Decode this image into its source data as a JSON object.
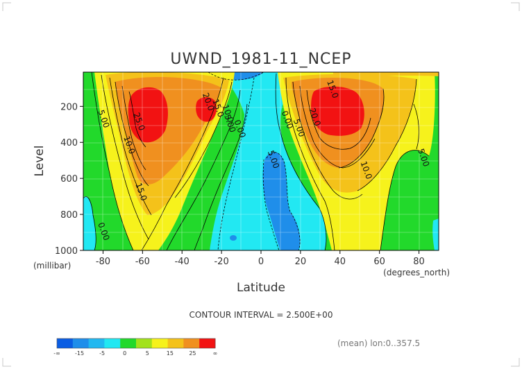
{
  "chart_data": {
    "type": "heatmap",
    "title": "UWND_1981-11_NCEP",
    "xlabel": "Latitude",
    "ylabel": "Level",
    "x_units": "(degrees_north)",
    "y_units": "(millibar)",
    "xlim": [
      -90,
      90
    ],
    "ylim": [
      1000,
      10
    ],
    "y_inverted": true,
    "x_ticks": [
      -80,
      -60,
      -40,
      -20,
      0,
      20,
      40,
      60,
      80
    ],
    "y_ticks": [
      200,
      400,
      600,
      800,
      1000
    ],
    "grid": true,
    "contour_interval_text": "CONTOUR INTERVAL = 2.500E+00",
    "contour_labels": [
      {
        "text": "15.0",
        "lat": 35,
        "level": 110
      },
      {
        "text": "20.0",
        "lat": -28,
        "level": 180
      },
      {
        "text": "15.0",
        "lat": -23,
        "level": 215
      },
      {
        "text": "10.0",
        "lat": -18,
        "level": 245
      },
      {
        "text": "5.00",
        "lat": -17,
        "level": 300
      },
      {
        "text": "0.00",
        "lat": -12,
        "level": 330
      },
      {
        "text": "5.00",
        "lat": -81,
        "level": 275
      },
      {
        "text": "25.0",
        "lat": -63,
        "level": 290
      },
      {
        "text": "10.0",
        "lat": -68,
        "level": 420
      },
      {
        "text": "15.0",
        "lat": -62,
        "level": 680
      },
      {
        "text": "0.00",
        "lat": -81,
        "level": 900
      },
      {
        "text": "0.00",
        "lat": 12,
        "level": 280
      },
      {
        "text": "5.00",
        "lat": 18,
        "level": 325
      },
      {
        "text": "5.00",
        "lat": 5,
        "level": 500
      },
      {
        "text": "20.0",
        "lat": 26,
        "level": 265
      },
      {
        "text": "10.0",
        "lat": 52,
        "level": 560
      },
      {
        "text": "5.00",
        "lat": 81,
        "level": 490
      }
    ],
    "colorbar": {
      "colors": [
        "#0a5de3",
        "#1f8eea",
        "#22b8f0",
        "#22e8f2",
        "#22d92b",
        "#a3e21b",
        "#f6f21c",
        "#f4c21a",
        "#f0901f",
        "#f21212"
      ],
      "labels": [
        "-∞",
        "-15",
        "-5",
        "0",
        "5",
        "15",
        "25",
        "∞"
      ]
    },
    "footer_note": "(mean) lon:0..357.5",
    "colors": {
      "le_m5": "#1f8eea",
      "m5_0": "#22e8f2",
      "0_5": "#22d92b",
      "5_10": "#f6f21c",
      "10_15": "#f4c21a",
      "15_20": "#f0901f",
      "ge_25": "#f21212"
    }
  }
}
